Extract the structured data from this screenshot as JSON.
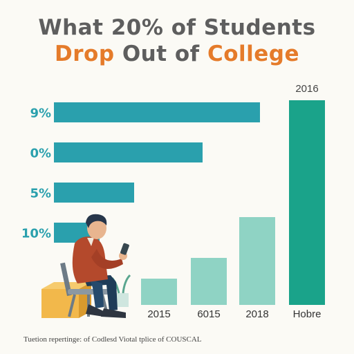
{
  "title": {
    "line1": "What 20% of Students",
    "line2_part1": "Drop",
    "line2_part2": " Out of ",
    "line2_part3": "College"
  },
  "footnote": "Tuetion repertinge: of Codlesd Viotal tplice of COUSCAL",
  "colors": {
    "hbar": "#2aa0ad",
    "vbar_light": "#8fd3c4",
    "vbar_dark": "#1aa38a",
    "title_gray": "#5e5e5e",
    "title_orange": "#e57b2a"
  },
  "icons": [
    "student-illustration",
    "phone-icon",
    "box-icon",
    "chair-icon"
  ],
  "chart_data": [
    {
      "type": "bar",
      "orientation": "horizontal",
      "categories": [
        "9%",
        "0%",
        "5%",
        "10%"
      ],
      "values": [
        100,
        72,
        39,
        22
      ],
      "value_units": "relative length (no axis shown)"
    },
    {
      "type": "bar",
      "orientation": "vertical",
      "categories": [
        "2015",
        "6015",
        "2018",
        "Hobre"
      ],
      "values": [
        13,
        23,
        43,
        100
      ],
      "value_units": "relative height (no axis shown)",
      "annotations": [
        {
          "category": "Hobre",
          "text": "2016"
        }
      ],
      "bar_colors": [
        "#8fd3c4",
        "#8fd3c4",
        "#8fd3c4",
        "#1aa38a"
      ]
    }
  ]
}
